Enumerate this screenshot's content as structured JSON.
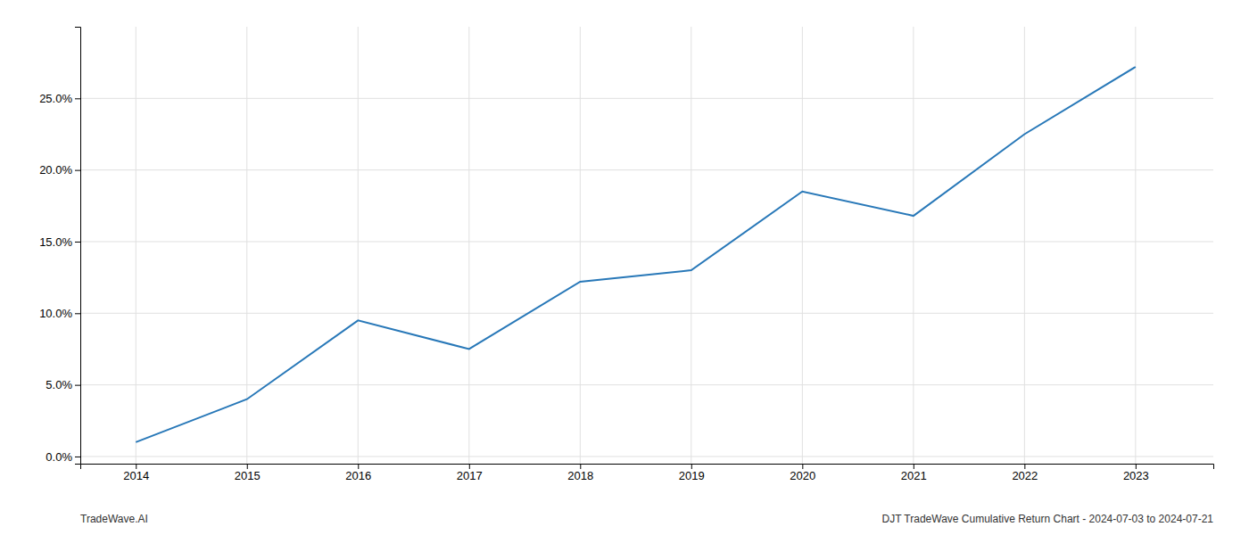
{
  "chart_data": {
    "type": "line",
    "x": [
      2014,
      2015,
      2016,
      2017,
      2018,
      2019,
      2020,
      2021,
      2022,
      2023
    ],
    "values": [
      0.01,
      0.04,
      0.095,
      0.075,
      0.122,
      0.13,
      0.185,
      0.168,
      0.225,
      0.272
    ],
    "color": "#2878b8",
    "xlim": [
      2013.5,
      2023.7
    ],
    "ylim": [
      -0.005,
      0.3
    ],
    "xticks": [
      2014,
      2015,
      2016,
      2017,
      2018,
      2019,
      2020,
      2021,
      2022,
      2023
    ],
    "yticks": [
      {
        "value": 0.0,
        "label": "0.0%"
      },
      {
        "value": 0.05,
        "label": "5.0%"
      },
      {
        "value": 0.1,
        "label": "10.0%"
      },
      {
        "value": 0.15,
        "label": "15.0%"
      },
      {
        "value": 0.2,
        "label": "20.0%"
      },
      {
        "value": 0.25,
        "label": "25.0%"
      }
    ],
    "grid": true,
    "annotations": [
      "TradeWave.AI",
      "DJT TradeWave Cumulative Return Chart - 2024-07-03 to 2024-07-21"
    ]
  }
}
